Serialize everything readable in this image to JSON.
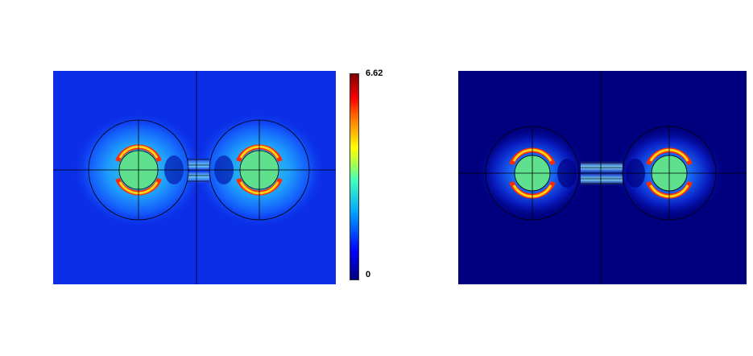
{
  "colorbar": {
    "max_label": "6.62",
    "min_label": "0",
    "colormap": [
      "#00007f",
      "#0000ff",
      "#00a6ff",
      "#3fffbf",
      "#a6ff50",
      "#ffff00",
      "#ff7a00",
      "#ff0000",
      "#7f0000"
    ]
  },
  "panels": [
    {
      "id": "left",
      "background": "#0b2ee6",
      "ring_color": "#3fa6ff",
      "core_color": "#5ee08f"
    },
    {
      "id": "right",
      "background": "#00007f",
      "ring_color": "#1a55e8",
      "core_color": "#5ee08f"
    }
  ]
}
